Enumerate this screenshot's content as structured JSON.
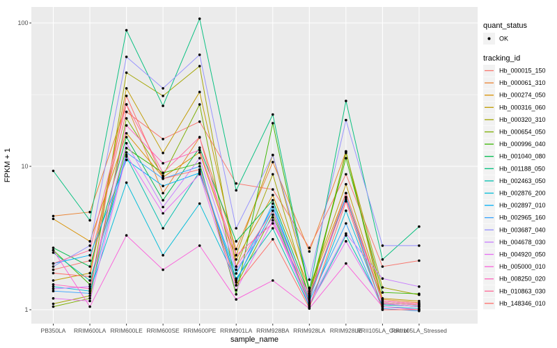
{
  "figure": {
    "y_axis": {
      "label": "FPKM + 1"
    },
    "x_axis": {
      "label": "sample_name"
    },
    "legend": {
      "quant_status_title": "quant_status",
      "quant_status_items": [
        "OK"
      ],
      "tracking_id_title": "tracking_id"
    }
  },
  "style": {
    "panel_bg": "#EBEBEB",
    "grid_color": "#FFFFFF",
    "legend_key_bg": "#F2F2F2",
    "tick_label_color": "#4D4D4D",
    "axis_title_color": "#000000",
    "point_color": "#000000",
    "tick_mark_color": "#333333"
  },
  "chart_data": {
    "type": "line",
    "title": "",
    "xlabel": "sample_name",
    "ylabel": "FPKM + 1",
    "y_scale": "log10",
    "y_ticks": [
      1,
      10,
      100
    ],
    "ylim": [
      0.8,
      130
    ],
    "grid": true,
    "legend_position": "right",
    "categories": [
      "PB350LA",
      "RRIM600LA",
      "RRIM600LE",
      "RRIM600SE",
      "RRIM600PE",
      "RRIM901LA",
      "RRIM928BA",
      "RRIM928LA",
      "RRIM928LE",
      "RRII105LA_Control",
      "RRII105LA_Stressed"
    ],
    "series": [
      {
        "name": "Hb_000015_150",
        "color": "#F8766D",
        "values": [
          1.9,
          2.2,
          24,
          15.5,
          20.5,
          7.6,
          6.9,
          2.7,
          8.8,
          2.0,
          2.2
        ]
      },
      {
        "name": "Hb_000061_310",
        "color": "#EA8331",
        "values": [
          4.5,
          4.8,
          27,
          6.5,
          15.9,
          2.65,
          10.7,
          2.55,
          12.7,
          1.18,
          1.12
        ]
      },
      {
        "name": "Hb_000274_050",
        "color": "#D89000",
        "values": [
          4.3,
          3.0,
          17,
          8.4,
          12.5,
          2.24,
          6.3,
          1.4,
          6.5,
          1.15,
          1.1
        ]
      },
      {
        "name": "Hb_000316_060",
        "color": "#C09B00",
        "values": [
          1.6,
          1.8,
          35,
          12.4,
          33,
          2.4,
          12.0,
          1.42,
          7.5,
          1.2,
          1.15
        ]
      },
      {
        "name": "Hb_000320_310",
        "color": "#A3A500",
        "values": [
          1.1,
          1.25,
          45,
          31,
          50,
          2.0,
          8.8,
          1.22,
          12.4,
          1.43,
          1.27
        ]
      },
      {
        "name": "Hb_000654_050",
        "color": "#7CAE00",
        "values": [
          1.05,
          1.2,
          21.6,
          8.6,
          27,
          1.48,
          4.6,
          1.12,
          12.7,
          1.1,
          1.05
        ]
      },
      {
        "name": "Hb_000996_040",
        "color": "#39B600",
        "values": [
          2.6,
          1.5,
          13.4,
          9.0,
          10.5,
          1.28,
          20,
          1.3,
          11.4,
          1.32,
          1.29
        ]
      },
      {
        "name": "Hb_001040_080",
        "color": "#00BB4E",
        "values": [
          2.7,
          2.0,
          16,
          5.8,
          13.5,
          3.0,
          5.8,
          1.25,
          6.1,
          1.12,
          1.08
        ]
      },
      {
        "name": "Hb_001188_050",
        "color": "#00BF7D",
        "values": [
          9.3,
          4.2,
          89,
          26.4,
          107,
          6.8,
          23,
          1.35,
          28.6,
          2.24,
          3.8
        ]
      },
      {
        "name": "Hb_002463_050",
        "color": "#00C0AF",
        "values": [
          2.5,
          1.6,
          11.7,
          3.7,
          9.2,
          1.65,
          3.7,
          1.06,
          3.3,
          1.08,
          1.06
        ]
      },
      {
        "name": "Hb_002876_200",
        "color": "#00BCD8",
        "values": [
          1.45,
          1.35,
          7.7,
          2.4,
          5.5,
          1.6,
          4.9,
          1.05,
          4.9,
          1.05,
          1.02
        ]
      },
      {
        "name": "Hb_002897_010",
        "color": "#00B0F6",
        "values": [
          2.1,
          2.4,
          11.1,
          7.3,
          9.0,
          1.79,
          5.2,
          1.18,
          6.1,
          1.0,
          1.0
        ]
      },
      {
        "name": "Hb_002965_160",
        "color": "#35A2FF",
        "values": [
          1.35,
          1.3,
          12.5,
          8.2,
          10.0,
          1.55,
          5.5,
          1.15,
          4.0,
          1.02,
          0.98
        ]
      },
      {
        "name": "Hb_003687_040",
        "color": "#9590FF",
        "values": [
          2.0,
          2.8,
          58,
          35,
          60,
          3.7,
          12.0,
          1.62,
          21,
          2.8,
          2.8
        ]
      },
      {
        "name": "Hb_004678_030",
        "color": "#C77CFF",
        "values": [
          1.4,
          1.45,
          14.5,
          5.2,
          11.4,
          1.9,
          4.4,
          1.1,
          3.4,
          1.65,
          1.45
        ]
      },
      {
        "name": "Hb_004920_050",
        "color": "#E76BF3",
        "values": [
          1.2,
          1.15,
          12.0,
          4.7,
          8.8,
          1.37,
          4.2,
          1.08,
          3.0,
          1.1,
          1.05
        ]
      },
      {
        "name": "Hb_005000_010",
        "color": "#FA62DB",
        "values": [
          2.6,
          1.05,
          3.3,
          1.9,
          2.8,
          1.18,
          1.6,
          1.02,
          2.1,
          1.05,
          1.0
        ]
      },
      {
        "name": "Hb_008250_020",
        "color": "#FF62BC",
        "values": [
          1.5,
          1.4,
          19.3,
          10.5,
          13.0,
          2.4,
          4.0,
          1.28,
          5.9,
          1.15,
          1.1
        ]
      },
      {
        "name": "Hb_010863_030",
        "color": "#FF6A98",
        "values": [
          2.1,
          2.6,
          27,
          9.0,
          16,
          2.0,
          4.9,
          1.2,
          6.5,
          1.12,
          1.08
        ]
      },
      {
        "name": "Hb_148346_010",
        "color": "#FF6C67",
        "values": [
          1.8,
          1.7,
          31,
          8.2,
          9.5,
          1.48,
          3.1,
          1.03,
          5.7,
          1.0,
          1.0
        ]
      }
    ]
  }
}
